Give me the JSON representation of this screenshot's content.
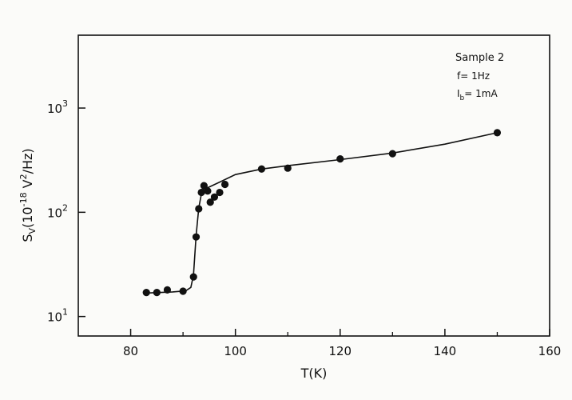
{
  "chart_data": {
    "type": "scatter",
    "xlabel": "T(K)",
    "ylabel": "S_V(10^-18 V^2/Hz)",
    "ylabel_parts": {
      "base": "S",
      "sub": "V",
      "open": "(10",
      "exp": "-18",
      "unit": " V",
      "unit_exp": "2",
      "close": "/Hz)"
    },
    "y_scale": "log",
    "xlim": [
      70,
      160
    ],
    "ylim": [
      6.5,
      5000
    ],
    "grid": false,
    "x_ticks": [
      80,
      100,
      120,
      140,
      160
    ],
    "x_minor_ticks": [
      90,
      110,
      130,
      150
    ],
    "y_ticks": [
      {
        "value": 10,
        "base": "10",
        "exp": "1"
      },
      {
        "value": 100,
        "base": "10",
        "exp": "2"
      },
      {
        "value": 1000,
        "base": "10",
        "exp": "3"
      }
    ],
    "annotations": [
      "Sample 2",
      "f= 1Hz",
      "I_b= 1mA"
    ],
    "annotation_parts": {
      "sample": "Sample 2",
      "freq": "f= 1Hz",
      "bias_base": "I",
      "bias_sub": "b",
      "bias_rest": "= 1mA"
    },
    "points": [
      {
        "x": 83,
        "y": 17
      },
      {
        "x": 85,
        "y": 17
      },
      {
        "x": 87,
        "y": 18
      },
      {
        "x": 90,
        "y": 17.5
      },
      {
        "x": 92,
        "y": 24
      },
      {
        "x": 92.5,
        "y": 58
      },
      {
        "x": 93,
        "y": 108
      },
      {
        "x": 93.5,
        "y": 155
      },
      {
        "x": 94,
        "y": 180
      },
      {
        "x": 94.7,
        "y": 160
      },
      {
        "x": 95.2,
        "y": 125
      },
      {
        "x": 96,
        "y": 140
      },
      {
        "x": 97,
        "y": 155
      },
      {
        "x": 98,
        "y": 185
      },
      {
        "x": 105,
        "y": 260
      },
      {
        "x": 110,
        "y": 265
      },
      {
        "x": 120,
        "y": 325
      },
      {
        "x": 130,
        "y": 365
      },
      {
        "x": 150,
        "y": 580
      }
    ],
    "fit_curve": [
      {
        "x": 83,
        "y": 16.8
      },
      {
        "x": 88,
        "y": 17.2
      },
      {
        "x": 90.5,
        "y": 17.6
      },
      {
        "x": 91.5,
        "y": 19
      },
      {
        "x": 92,
        "y": 25
      },
      {
        "x": 92.5,
        "y": 60
      },
      {
        "x": 93,
        "y": 110
      },
      {
        "x": 93.5,
        "y": 150
      },
      {
        "x": 94,
        "y": 168
      },
      {
        "x": 95,
        "y": 175
      },
      {
        "x": 97,
        "y": 195
      },
      {
        "x": 100,
        "y": 230
      },
      {
        "x": 105,
        "y": 260
      },
      {
        "x": 110,
        "y": 280
      },
      {
        "x": 120,
        "y": 320
      },
      {
        "x": 130,
        "y": 370
      },
      {
        "x": 140,
        "y": 450
      },
      {
        "x": 150,
        "y": 580
      }
    ]
  }
}
